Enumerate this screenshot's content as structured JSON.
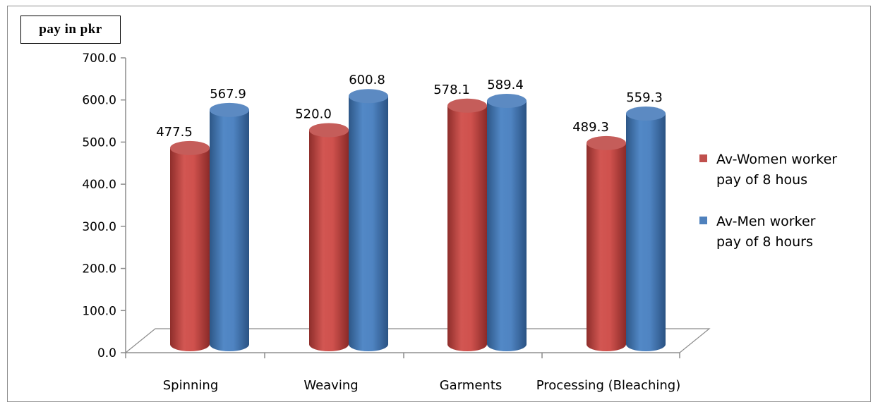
{
  "chart_data": {
    "type": "bar",
    "ylabel": "pay in pkr",
    "categories": [
      "Spinning",
      "Weaving",
      "Garments",
      "Processing (Bleaching)"
    ],
    "series": [
      {
        "name": "Av-Women worker pay of 8 hous",
        "legend_lines": [
          "Av-Women worker",
          "pay of 8 hous"
        ],
        "color": "#c0504d",
        "values": [
          477.5,
          520.0,
          578.1,
          489.3
        ]
      },
      {
        "name": "Av-Men worker pay of 8 hours",
        "legend_lines": [
          "Av-Men worker",
          "pay of 8 hours"
        ],
        "color": "#4f81bd",
        "values": [
          567.9,
          600.8,
          589.4,
          559.3
        ]
      }
    ],
    "ylim": [
      0,
      700
    ],
    "yticks": [
      "0.0",
      "100.0",
      "200.0",
      "300.0",
      "400.0",
      "500.0",
      "600.0",
      "700.0"
    ],
    "data_labels": [
      [
        "477.5",
        "520.0",
        "578.1",
        "489.3"
      ],
      [
        "567.9",
        "600.8",
        "589.4",
        "559.3"
      ]
    ],
    "grid": false,
    "legend_position": "right",
    "style": "3d-cylinder"
  }
}
